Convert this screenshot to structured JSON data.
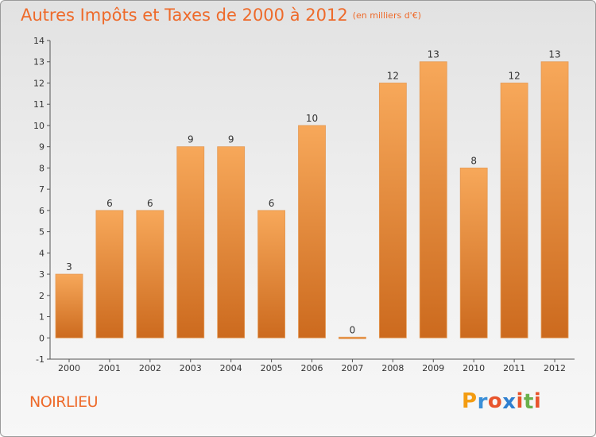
{
  "header": {
    "title": "Autres Impôts et Taxes de 2000 à 2012",
    "unit": "(en milliers d'€)"
  },
  "footer": {
    "commune": "NOIRLIEU",
    "logo": {
      "letters": [
        "P",
        "r",
        "o",
        "x",
        "i",
        "t",
        "i"
      ],
      "colors": [
        "#f39c12",
        "#3a8fd8",
        "#e8542c",
        "#2f7fd0",
        "#e8542c",
        "#6ab04c",
        "#e8542c"
      ]
    }
  },
  "colors": {
    "accent": "#ee6a2a",
    "bar_top": "#f7a85a",
    "bar_bottom": "#cc6a1e",
    "axis": "#555555"
  },
  "chart_data": {
    "type": "bar",
    "categories": [
      "2000",
      "2001",
      "2002",
      "2003",
      "2004",
      "2005",
      "2006",
      "2007",
      "2008",
      "2009",
      "2010",
      "2011",
      "2012"
    ],
    "values": [
      3,
      6,
      6,
      9,
      9,
      6,
      10,
      0,
      12,
      13,
      8,
      12,
      13
    ],
    "title": "Autres Impôts et Taxes de 2000 à 2012",
    "ylim": [
      -1,
      14
    ],
    "yticks": [
      "-1",
      "0",
      "1",
      "2",
      "3",
      "4",
      "5",
      "6",
      "7",
      "8",
      "9",
      "10",
      "11",
      "12",
      "13",
      "14"
    ],
    "grid": false,
    "data_labels": true
  }
}
